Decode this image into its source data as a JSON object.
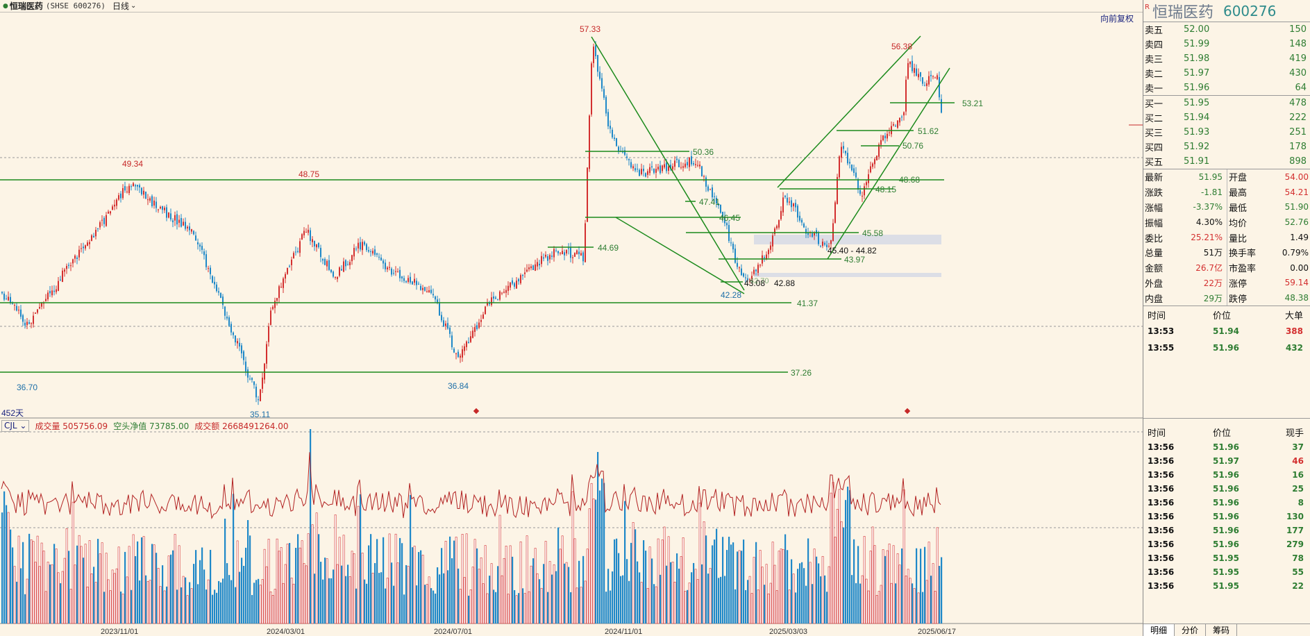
{
  "header": {
    "stock_name": "恒瑞医药",
    "stock_code": "(SHSE 600276)",
    "superscript": "R",
    "period": "日线",
    "adjust_label": "向前复权"
  },
  "chart": {
    "days_label": "452天",
    "price_labels": [
      "57.33",
      "56.38",
      "49.34",
      "48.75",
      "36.70",
      "35.11",
      "36.84",
      "42.28"
    ],
    "level_labels": [
      "53.21",
      "51.62",
      "50.76",
      "50.36",
      "48.68",
      "48.15",
      "47.41",
      "46.45",
      "45.58",
      "44.69",
      "43.97",
      "41.37",
      "37.26",
      "45.40 - 44.82",
      "43.08",
      "42.88",
      "42.70"
    ],
    "date_labels": [
      "2023/11/01",
      "2024/03/01",
      "2024/07/01",
      "2024/11/01",
      "2025/03/03",
      "2025/06/17"
    ],
    "colors": {
      "up": "#D32F2F",
      "down": "#1E88C8",
      "line": "#1B8A1B",
      "bg": "#FCF4E6"
    }
  },
  "indicator": {
    "name": "CJL",
    "vol_label": "成交量 505756.09",
    "net_label": "空头净值 73785.00",
    "amount_label": "成交额 2668491264.00"
  },
  "panel": {
    "title_r": "R",
    "name": "恒瑞医药",
    "code": "600276",
    "asks": [
      {
        "label": "卖五",
        "price": "52.00",
        "vol": "150"
      },
      {
        "label": "卖四",
        "price": "51.99",
        "vol": "148"
      },
      {
        "label": "卖三",
        "price": "51.98",
        "vol": "419"
      },
      {
        "label": "卖二",
        "price": "51.97",
        "vol": "430"
      },
      {
        "label": "卖一",
        "price": "51.96",
        "vol": "64"
      }
    ],
    "bids": [
      {
        "label": "买一",
        "price": "51.95",
        "vol": "478"
      },
      {
        "label": "买二",
        "price": "51.94",
        "vol": "222"
      },
      {
        "label": "买三",
        "price": "51.93",
        "vol": "251"
      },
      {
        "label": "买四",
        "price": "51.92",
        "vol": "178"
      },
      {
        "label": "买五",
        "price": "51.91",
        "vol": "898"
      }
    ],
    "stats_left": [
      {
        "k": "最新",
        "v": "51.95",
        "c": "green"
      },
      {
        "k": "涨跌",
        "v": "-1.81",
        "c": "green"
      },
      {
        "k": "涨幅",
        "v": "-3.37%",
        "c": "green"
      },
      {
        "k": "振幅",
        "v": "4.30%",
        "c": "black"
      },
      {
        "k": "委比",
        "v": "25.21%",
        "c": "red"
      },
      {
        "k": "总量",
        "v": "51万",
        "c": "black"
      },
      {
        "k": "金额",
        "v": "26.7亿",
        "c": "red"
      },
      {
        "k": "外盘",
        "v": "22万",
        "c": "red"
      },
      {
        "k": "内盘",
        "v": "29万",
        "c": "green"
      }
    ],
    "stats_right": [
      {
        "k": "开盘",
        "v": "54.00",
        "c": "red"
      },
      {
        "k": "最高",
        "v": "54.21",
        "c": "red"
      },
      {
        "k": "最低",
        "v": "51.90",
        "c": "green"
      },
      {
        "k": "均价",
        "v": "52.76",
        "c": "green"
      },
      {
        "k": "量比",
        "v": "1.49",
        "c": "black"
      },
      {
        "k": "换手率",
        "v": "0.79%",
        "c": "black"
      },
      {
        "k": "市盈率",
        "v": "0.00",
        "c": "black"
      },
      {
        "k": "涨停",
        "v": "59.14",
        "c": "red"
      },
      {
        "k": "跌停",
        "v": "48.38",
        "c": "green"
      }
    ],
    "minute_head": [
      "时间",
      "价位",
      "大单"
    ],
    "minute_rows": [
      {
        "t": "13:53",
        "p": "51.94",
        "v": "388",
        "c": "red"
      },
      {
        "t": "13:55",
        "p": "51.96",
        "v": "432",
        "c": "green"
      }
    ],
    "tick_head": [
      "时间",
      "价位",
      "现手"
    ],
    "tick_rows": [
      {
        "t": "13:56",
        "p": "51.96",
        "v": "37",
        "pc": "green",
        "vc": "green"
      },
      {
        "t": "13:56",
        "p": "51.97",
        "v": "46",
        "pc": "green",
        "vc": "red"
      },
      {
        "t": "13:56",
        "p": "51.96",
        "v": "16",
        "pc": "green",
        "vc": "green"
      },
      {
        "t": "13:56",
        "p": "51.96",
        "v": "25",
        "pc": "green",
        "vc": "green"
      },
      {
        "t": "13:56",
        "p": "51.96",
        "v": "8",
        "pc": "green",
        "vc": "green"
      },
      {
        "t": "13:56",
        "p": "51.96",
        "v": "130",
        "pc": "green",
        "vc": "green"
      },
      {
        "t": "13:56",
        "p": "51.96",
        "v": "177",
        "pc": "green",
        "vc": "green"
      },
      {
        "t": "13:56",
        "p": "51.96",
        "v": "279",
        "pc": "green",
        "vc": "green"
      },
      {
        "t": "13:56",
        "p": "51.95",
        "v": "78",
        "pc": "green",
        "vc": "green"
      },
      {
        "t": "13:56",
        "p": "51.95",
        "v": "55",
        "pc": "green",
        "vc": "green"
      },
      {
        "t": "13:56",
        "p": "51.95",
        "v": "22",
        "pc": "green",
        "vc": "green"
      }
    ],
    "tabs": [
      "明细",
      "分价",
      "筹码"
    ]
  }
}
